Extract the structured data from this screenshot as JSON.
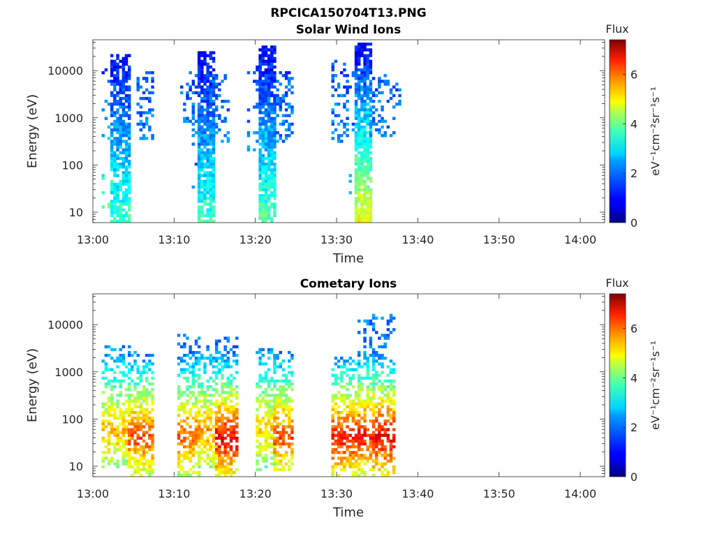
{
  "figure": {
    "suptitle": "RPCICA150704T13.PNG"
  },
  "chart_data": [
    {
      "type": "heatmap",
      "title": "Solar Wind Ions",
      "xlabel": "Time",
      "ylabel": "Energy (eV)",
      "x_ticks": [
        "13:00",
        "13:10",
        "13:20",
        "13:30",
        "13:40",
        "13:50",
        "14:00"
      ],
      "y_ticks": [
        "10",
        "100",
        "1000",
        "10000"
      ],
      "y_scale": "log",
      "xlim": [
        "13:00",
        "14:03"
      ],
      "ylim": [
        6,
        45000
      ],
      "colorbar": {
        "label": "Flux",
        "unit": "eV⁻¹cm⁻²sr⁻¹s⁻¹",
        "ticks": [
          "0",
          "2",
          "4",
          "6"
        ],
        "range": [
          0,
          7.4
        ],
        "colormap": "jet"
      },
      "clusters": [
        {
          "t_start": 13.02,
          "t_end": 13.04,
          "e_min": 9,
          "e_max": 13000,
          "flux_high": 3.5,
          "flux_low": 1.2,
          "density": 0.12
        },
        {
          "t_start": 13.04,
          "t_end": 13.075,
          "e_min": 6,
          "e_max": 20000,
          "flux_high": 3.2,
          "flux_low": 1.0,
          "density": 0.75
        },
        {
          "t_start": 13.09,
          "t_end": 13.12,
          "e_min": 350,
          "e_max": 9000,
          "flux_high": 1.9,
          "flux_low": 1.5,
          "density": 0.3
        },
        {
          "t_start": 13.18,
          "t_end": 13.205,
          "e_min": 400,
          "e_max": 9000,
          "flux_high": 1.9,
          "flux_low": 1.5,
          "density": 0.22
        },
        {
          "t_start": 13.205,
          "t_end": 13.215,
          "e_min": 30,
          "e_max": 8000,
          "flux_high": 2.0,
          "flux_low": 1.5,
          "density": 0.15
        },
        {
          "t_start": 13.215,
          "t_end": 13.245,
          "e_min": 6,
          "e_max": 25000,
          "flux_high": 3.2,
          "flux_low": 0.9,
          "density": 0.85
        },
        {
          "t_start": 13.245,
          "t_end": 13.28,
          "e_min": 300,
          "e_max": 9000,
          "flux_high": 1.9,
          "flux_low": 1.5,
          "density": 0.28
        },
        {
          "t_start": 13.32,
          "t_end": 13.345,
          "e_min": 200,
          "e_max": 12000,
          "flux_high": 2.2,
          "flux_low": 1.4,
          "density": 0.12
        },
        {
          "t_start": 13.345,
          "t_end": 13.375,
          "e_min": 6,
          "e_max": 30000,
          "flux_high": 3.4,
          "flux_low": 0.9,
          "density": 0.85
        },
        {
          "t_start": 13.375,
          "t_end": 13.41,
          "e_min": 300,
          "e_max": 9000,
          "flux_high": 1.9,
          "flux_low": 1.5,
          "density": 0.3
        },
        {
          "t_start": 13.49,
          "t_end": 13.525,
          "e_min": 300,
          "e_max": 15000,
          "flux_high": 2.0,
          "flux_low": 1.4,
          "density": 0.3
        },
        {
          "t_start": 13.525,
          "t_end": 13.54,
          "e_min": 25,
          "e_max": 9000,
          "flux_high": 2.0,
          "flux_low": 1.5,
          "density": 0.12
        },
        {
          "t_start": 13.54,
          "t_end": 13.57,
          "e_min": 6,
          "e_max": 35000,
          "flux_high": 4.6,
          "flux_low": 0.9,
          "density": 0.82
        },
        {
          "t_start": 13.57,
          "t_end": 13.63,
          "e_min": 400,
          "e_max": 9000,
          "flux_high": 1.9,
          "flux_low": 1.5,
          "density": 0.3
        }
      ]
    },
    {
      "type": "heatmap",
      "title": "Cometary Ions",
      "xlabel": "Time",
      "ylabel": "Energy (eV)",
      "x_ticks": [
        "13:00",
        "13:10",
        "13:20",
        "13:30",
        "13:40",
        "13:50",
        "14:00"
      ],
      "y_ticks": [
        "10",
        "100",
        "1000",
        "10000"
      ],
      "y_scale": "log",
      "xlim": [
        "13:00",
        "14:03"
      ],
      "ylim": [
        6,
        45000
      ],
      "colorbar": {
        "label": "Flux",
        "unit": "eV⁻¹cm⁻²sr⁻¹s⁻¹",
        "ticks": [
          "0",
          "2",
          "4",
          "6"
        ],
        "range": [
          0,
          7.4
        ],
        "colormap": "jet"
      },
      "clusters": [
        {
          "t_start": 13.02,
          "t_end": 13.075,
          "e_min": 10,
          "e_max": 3500,
          "peak_e": 55,
          "flux_peak": 5.2,
          "flux_edge": 1.8,
          "density": 0.62
        },
        {
          "t_start": 13.075,
          "t_end": 13.125,
          "e_min": 6,
          "e_max": 2500,
          "peak_e": 42,
          "flux_peak": 6.0,
          "flux_edge": 1.8,
          "density": 0.66
        },
        {
          "t_start": 13.175,
          "t_end": 13.215,
          "e_min": 6,
          "e_max": 6000,
          "peak_e": 42,
          "flux_peak": 5.8,
          "flux_edge": 1.8,
          "density": 0.64
        },
        {
          "t_start": 13.215,
          "t_end": 13.255,
          "e_min": 10,
          "e_max": 3500,
          "peak_e": 55,
          "flux_peak": 5.4,
          "flux_edge": 1.8,
          "density": 0.64
        },
        {
          "t_start": 13.255,
          "t_end": 13.295,
          "e_min": 6,
          "e_max": 5000,
          "peak_e": 40,
          "flux_peak": 6.6,
          "flux_edge": 1.8,
          "density": 0.68
        },
        {
          "t_start": 13.335,
          "t_end": 13.375,
          "e_min": 8,
          "e_max": 3000,
          "peak_e": 60,
          "flux_peak": 5.0,
          "flux_edge": 1.8,
          "density": 0.6
        },
        {
          "t_start": 13.375,
          "t_end": 13.41,
          "e_min": 8,
          "e_max": 3000,
          "peak_e": 42,
          "flux_peak": 6.0,
          "flux_edge": 1.8,
          "density": 0.64
        },
        {
          "t_start": 13.495,
          "t_end": 13.545,
          "e_min": 6,
          "e_max": 2000,
          "peak_e": 40,
          "flux_peak": 6.4,
          "flux_edge": 1.8,
          "density": 0.64
        },
        {
          "t_start": 13.545,
          "t_end": 13.575,
          "e_min": 6,
          "e_max": 12000,
          "peak_e": 45,
          "flux_peak": 6.4,
          "flux_edge": 1.8,
          "density": 0.62
        },
        {
          "t_start": 13.575,
          "t_end": 13.615,
          "e_min": 6,
          "e_max": 16000,
          "peak_e": 42,
          "flux_peak": 6.6,
          "flux_edge": 1.8,
          "density": 0.66
        }
      ]
    }
  ]
}
